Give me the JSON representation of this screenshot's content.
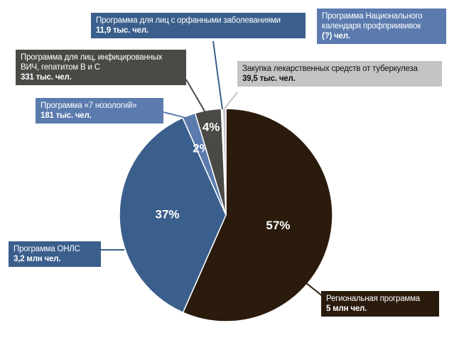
{
  "chart_data": {
    "type": "pie",
    "categories": [
      "Региональная программа",
      "Программа ОНЛС",
      "Программа «7 нозологий»",
      "Программа для лиц, инфицированных ВИЧ, гепатитом В и С",
      "Программа для лиц с орфанными заболеваниями",
      "Программа Национального календаря профприививок",
      "Закупка лекарственных средств от туберкулеза"
    ],
    "counts": [
      "5 млн чел.",
      "3,2 млн чел.",
      "181 тыс. чел.",
      "331 тыс. чел.",
      "11,9 тыс. чел.",
      "(?) чел.",
      "39,5 тыс. чел."
    ],
    "values": [
      57,
      37,
      2,
      4,
      0.1,
      0.1,
      0.5
    ],
    "value_labels": [
      "57%",
      "37%",
      "2%",
      "4%",
      null,
      null,
      null
    ],
    "colors": [
      "#2b1b0c",
      "#3b5f8c",
      "#5b7bae",
      "#4b4946",
      "#3b5f8c",
      "#5b7bae",
      "#c4c4c4"
    ]
  }
}
